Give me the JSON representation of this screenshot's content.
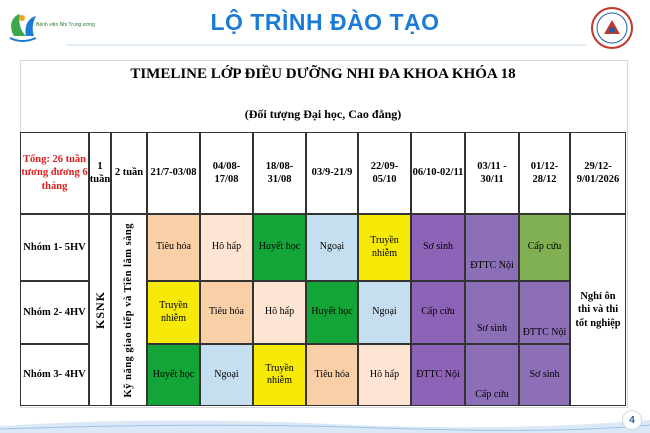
{
  "header": {
    "title": "LỘ TRÌNH ĐÀO TẠO",
    "logo_text": "Bệnh viện Nhi Trung ương"
  },
  "timeline": {
    "title": "TIMELINE LỚP ĐIỀU DƯỠNG NHI ĐA KHOA KHÓA 18",
    "subtitle": "(Đối tượng Đại học, Cao đẳng)"
  },
  "table": {
    "corner": "Tổng: 26 tuần tương đương 6 tháng",
    "col_1tuan": "1 tuần",
    "col_2tuan": "2 tuần",
    "dates": [
      "21/7-03/08",
      "04/08-17/08",
      "18/08-31/08",
      "03/9-21/9",
      "22/09-05/10",
      "06/10-02/11",
      "03/11 - 30/11",
      "01/12-28/12",
      "29/12-9/01/2026"
    ],
    "groups": [
      "Nhóm 1- 5HV",
      "Nhóm 2- 4HV",
      "Nhóm 3- 4HV"
    ],
    "ksnk": "KSNK",
    "skills": "Kỹ năng giao tiếp và Tiền lâm sàng",
    "exam": "Nghỉ ôn thi và thi tốt nghiệp",
    "rows": [
      [
        "Tiêu hóa",
        "Hô hấp",
        "Huyết học",
        "Ngoại",
        "Truyền nhiễm",
        "Sơ sinh"
      ],
      [
        "Truyền nhiễm",
        "Tiêu hóa",
        "Hô hấp",
        "Huyết học",
        "Ngoại",
        "Cấp cứu"
      ],
      [
        "Huyết học",
        "Ngoại",
        "Truyền nhiễm",
        "Tiêu hóa",
        "Hô hấp",
        "ĐTTC Nội"
      ]
    ],
    "late": {
      "g1_a": "ĐTTC Nội",
      "g1_b": "Cấp cứu",
      "g2_a": "Sơ sinh",
      "g2_b": "ĐTTC Nội",
      "g3_a": "Cấp cứu",
      "g3_b": "Sơ sinh"
    }
  },
  "colors": {
    "tieu_hoa": "#f9cfa8",
    "ho_hap": "#fde4d3",
    "huyet_hoc": "#13a538",
    "ngoai": "#c6dff0",
    "truyen_nhiem": "#f7ea09",
    "so_sinh": "#8d63b8",
    "cap_cuu": "#8d63b8",
    "dttc": "#8c6fb6",
    "late_purple": "#8c6fb6",
    "late_green": "#80b052",
    "title_blue": "#1c7bd6"
  },
  "page_number": "4"
}
